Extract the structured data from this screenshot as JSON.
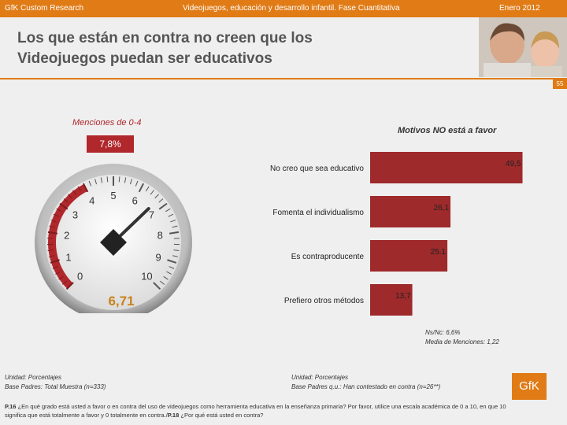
{
  "header": {
    "left": "GfK Custom Research",
    "center": "Videojuegos, educación y desarrollo infantil. Fase Cuantitativa",
    "right": "Enero 2012"
  },
  "title": {
    "line1": "Los que están en contra no creen que los",
    "line2": "Videojuegos puedan ser educativos"
  },
  "page_number": "55",
  "gauge": {
    "label": "Menciones de 0-4",
    "percent": "7,8%",
    "value_text": "6,71",
    "value": 6.71,
    "ticks": [
      "0",
      "1",
      "2",
      "3",
      "4",
      "5",
      "6",
      "7",
      "8",
      "9",
      "10"
    ],
    "highlight_range": [
      0,
      4
    ]
  },
  "chart_data": {
    "type": "bar",
    "title": "Motivos NO está a favor",
    "categories": [
      "No creo que sea educativo",
      "Fomenta el individualismo",
      "Es contraproducente",
      "Prefiero otros métodos"
    ],
    "values": [
      49.5,
      26.1,
      25.1,
      13.7
    ],
    "value_labels": [
      "49,5",
      "26,1",
      "25.1",
      "13,7"
    ],
    "xlim": [
      0,
      55
    ],
    "bar_color": "#9e2a2b"
  },
  "notes": {
    "line1": "Ns/Nc: 6,6%",
    "line2": "Media de Menciones: 1,22"
  },
  "footnote_left": {
    "line1": "Unidad: Porcentajes",
    "line2": "Base Padres: Total Muestra (n=333)"
  },
  "footnote_right": {
    "line1": "Unidad: Porcentajes",
    "line2": "Base Padres q.u.: Han contestado en contra (n=26**)"
  },
  "logo": "GfK",
  "question": {
    "p16_label": "P.16",
    "p16_text": "¿En qué grado está usted a favor o en contra del uso de videojuegos como herramienta educativa en la enseñanza primaria? Por favor, utilice una escala académica de 0 a 10, en que 10 significa que está totalmente a favor y 0 totalmente en contra./",
    "p18_label": "P.18",
    "p18_text": "¿Por qué está usted en contra?"
  },
  "colors": {
    "brand": "#e07b16",
    "accent": "#b0272c",
    "needle": "#333333"
  }
}
